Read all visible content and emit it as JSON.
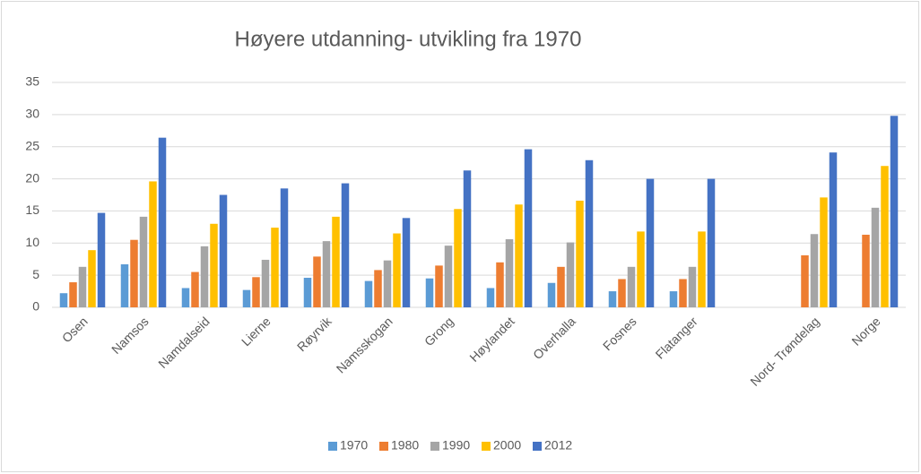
{
  "chart_data": {
    "type": "bar",
    "title": "Høyere utdanning- utvikling fra 1970",
    "categories": [
      "Osen",
      "Namsos",
      "Namdalseid",
      "Lierne",
      "Røyrvik",
      "Namsskogan",
      "Grong",
      "Høylandet",
      "Overhalla",
      "Fosnes",
      "Flatanger",
      null,
      "Nord- Trøndelag",
      "Norge"
    ],
    "series": [
      {
        "name": "1970",
        "color": "#5b9bd5",
        "values": [
          2.2,
          6.7,
          3.0,
          2.7,
          4.6,
          4.1,
          4.5,
          3.0,
          3.8,
          2.5,
          2.5,
          null,
          null,
          null
        ]
      },
      {
        "name": "1980",
        "color": "#ed7d31",
        "values": [
          3.9,
          10.5,
          5.5,
          4.7,
          7.9,
          5.8,
          6.5,
          7.0,
          6.3,
          4.4,
          4.4,
          null,
          8.1,
          11.3
        ]
      },
      {
        "name": "1990",
        "color": "#a5a5a5",
        "values": [
          6.3,
          14.1,
          9.5,
          7.4,
          10.3,
          7.3,
          9.6,
          10.6,
          10.1,
          6.3,
          6.3,
          null,
          11.4,
          15.5
        ]
      },
      {
        "name": "2000",
        "color": "#ffc000",
        "values": [
          8.9,
          19.6,
          13.0,
          12.4,
          14.1,
          11.5,
          15.3,
          16.0,
          16.6,
          11.8,
          11.8,
          null,
          17.1,
          22.0
        ]
      },
      {
        "name": "2012",
        "color": "#4472c4",
        "values": [
          14.7,
          26.4,
          17.5,
          18.5,
          19.3,
          13.9,
          21.3,
          24.6,
          22.9,
          20.0,
          20.0,
          null,
          24.1,
          29.8
        ]
      }
    ],
    "ylim": [
      0,
      35
    ],
    "yticks": [
      0,
      5,
      10,
      15,
      20,
      25,
      30,
      35
    ],
    "grid": true,
    "legend": "bottom"
  }
}
